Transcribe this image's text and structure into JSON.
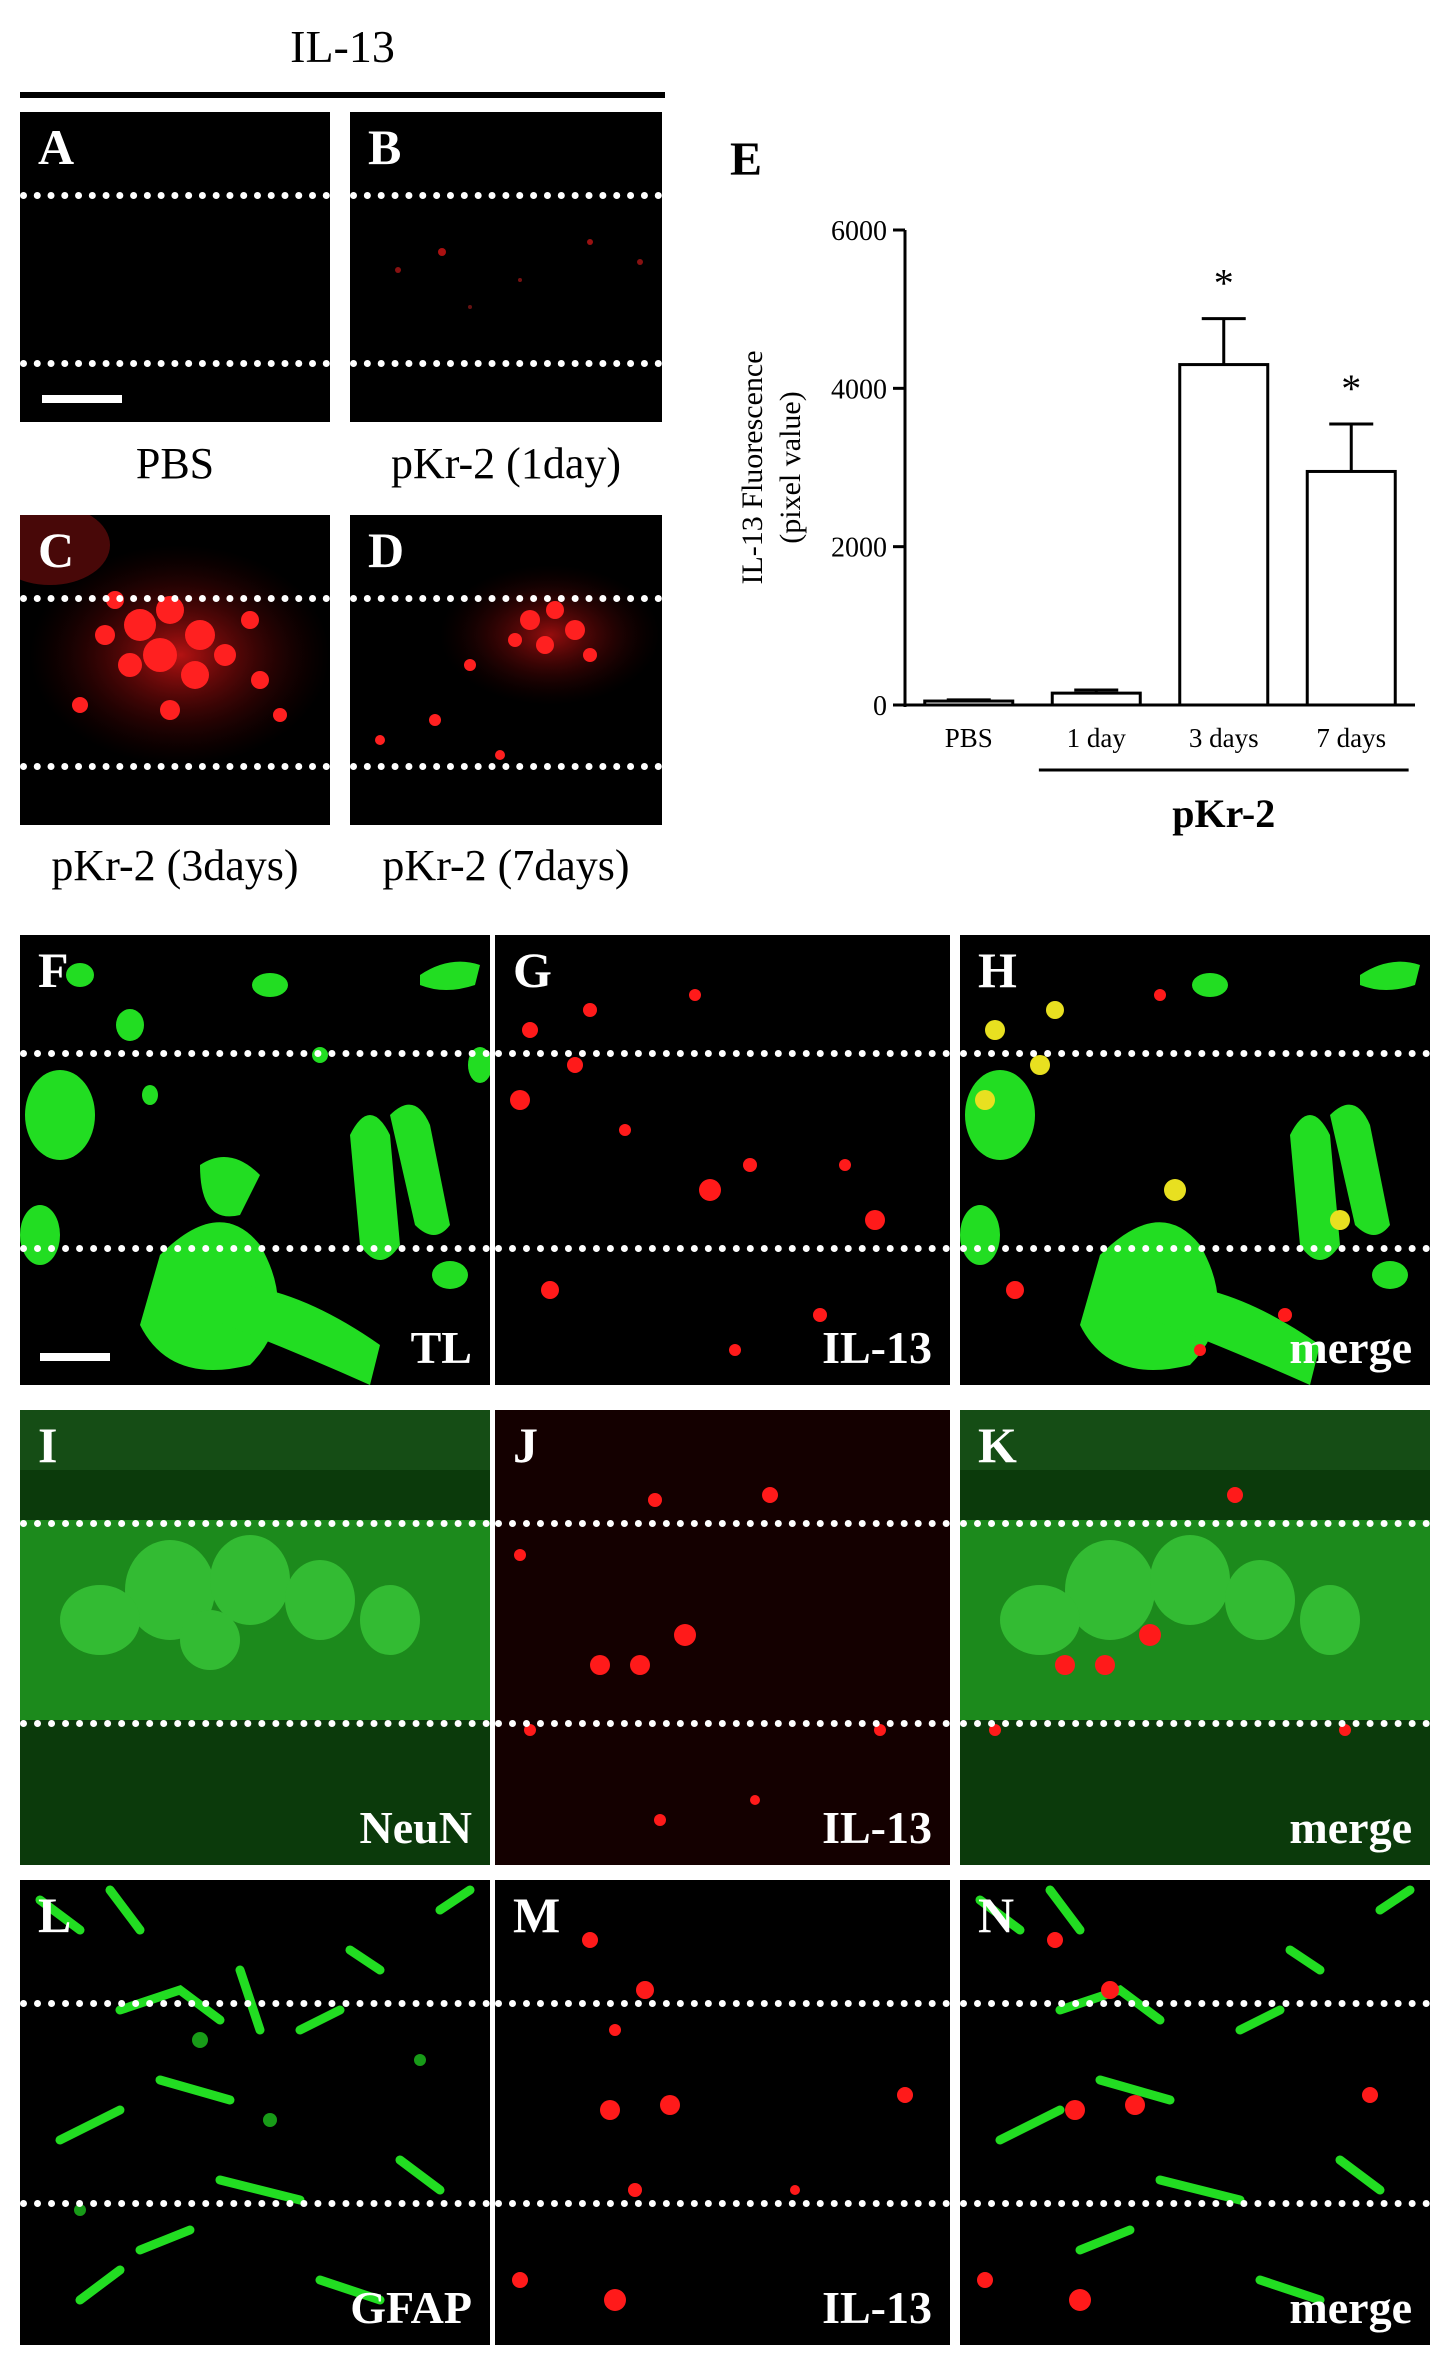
{
  "header": {
    "title": "IL-13"
  },
  "top_panels": [
    {
      "letter": "A",
      "caption": "PBS"
    },
    {
      "letter": "B",
      "caption": "pKr-2 (1day)"
    },
    {
      "letter": "C",
      "caption": "pKr-2 (3days)"
    },
    {
      "letter": "D",
      "caption": "pKr-2 (7days)"
    }
  ],
  "grid_panels": [
    {
      "letter": "F",
      "stain": "TL"
    },
    {
      "letter": "G",
      "stain": "IL-13"
    },
    {
      "letter": "H",
      "stain": "merge"
    },
    {
      "letter": "I",
      "stain": "NeuN"
    },
    {
      "letter": "J",
      "stain": "IL-13"
    },
    {
      "letter": "K",
      "stain": "merge"
    },
    {
      "letter": "L",
      "stain": "GFAP"
    },
    {
      "letter": "M",
      "stain": "IL-13"
    },
    {
      "letter": "N",
      "stain": "merge"
    }
  ],
  "colors": {
    "background": "#000000",
    "green_stain": "#22dd22",
    "red_stain": "#ff1a1a",
    "merge_yellow": "#e8e020",
    "dotted_line": "#ffffff"
  },
  "chart_data": {
    "panel_letter": "E",
    "type": "bar",
    "categories": [
      "PBS",
      "1 day",
      "3 days",
      "7 days"
    ],
    "values": [
      50,
      150,
      4300,
      2950
    ],
    "errors": [
      15,
      40,
      580,
      600
    ],
    "significance": [
      "",
      "",
      "*",
      "*"
    ],
    "ylabel": "IL-13 Fluorescence (pixel value)",
    "ylabel_lines": [
      "IL-13 Fluorescence",
      "(pixel value)"
    ],
    "ylim": [
      0,
      6000
    ],
    "yticks": [
      0,
      2000,
      4000,
      6000
    ],
    "group_label": "pKr-2",
    "group_members": [
      "1 day",
      "3 days",
      "7 days"
    ],
    "grid": false
  }
}
